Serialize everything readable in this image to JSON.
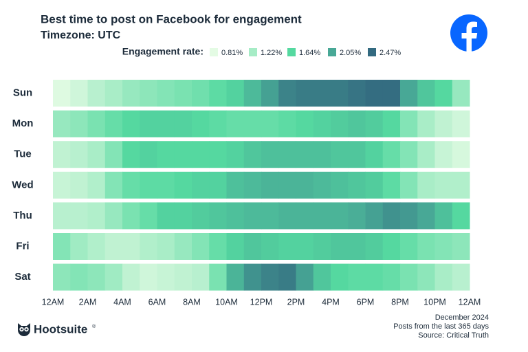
{
  "chart_data": {
    "type": "heatmap",
    "title": "Best time to post on Facebook for engagement",
    "subtitle": "Timezone: UTC",
    "legend_title": "Engagement rate:",
    "colorscale": [
      {
        "value": 0.81,
        "label": "0.81%",
        "color": "#e4fbe4"
      },
      {
        "value": 1.22,
        "label": "1.22%",
        "color": "#a6ecc6"
      },
      {
        "value": 1.64,
        "label": "1.64%",
        "color": "#55d9a0"
      },
      {
        "value": 2.05,
        "label": "2.05%",
        "color": "#48a896"
      },
      {
        "value": 2.47,
        "label": "2.47%",
        "color": "#336a80"
      }
    ],
    "rows": [
      "Sun",
      "Mon",
      "Tue",
      "Wed",
      "Thu",
      "Fri",
      "Sat"
    ],
    "xlim": [
      0,
      24
    ],
    "xticks": [
      {
        "value": 0,
        "label": "12AM"
      },
      {
        "value": 2,
        "label": "2AM"
      },
      {
        "value": 4,
        "label": "4AM"
      },
      {
        "value": 6,
        "label": "6AM"
      },
      {
        "value": 8,
        "label": "8AM"
      },
      {
        "value": 10,
        "label": "10AM"
      },
      {
        "value": 12,
        "label": "12PM"
      },
      {
        "value": 14,
        "label": "2PM"
      },
      {
        "value": 16,
        "label": "4PM"
      },
      {
        "value": 18,
        "label": "6PM"
      },
      {
        "value": 20,
        "label": "8PM"
      },
      {
        "value": 22,
        "label": "10PM"
      },
      {
        "value": 24,
        "label": "12AM"
      }
    ],
    "values": [
      [
        0.85,
        0.95,
        1.1,
        1.2,
        1.3,
        1.35,
        1.4,
        1.45,
        1.5,
        1.6,
        1.7,
        1.9,
        2.1,
        2.3,
        2.35,
        2.35,
        2.35,
        2.4,
        2.45,
        2.45,
        2.05,
        1.8,
        1.65,
        1.3
      ],
      [
        1.3,
        1.35,
        1.45,
        1.55,
        1.65,
        1.7,
        1.7,
        1.7,
        1.65,
        1.6,
        1.55,
        1.55,
        1.55,
        1.6,
        1.65,
        1.7,
        1.75,
        1.8,
        1.75,
        1.65,
        1.4,
        1.2,
        1.05,
        0.95
      ],
      [
        1.05,
        1.1,
        1.2,
        1.4,
        1.65,
        1.7,
        1.65,
        1.65,
        1.65,
        1.65,
        1.7,
        1.8,
        1.85,
        1.85,
        1.85,
        1.85,
        1.8,
        1.8,
        1.7,
        1.55,
        1.4,
        1.2,
        1.0,
        0.9
      ],
      [
        1.0,
        1.05,
        1.15,
        1.4,
        1.55,
        1.6,
        1.6,
        1.65,
        1.7,
        1.7,
        1.85,
        1.9,
        1.95,
        1.95,
        1.95,
        1.9,
        1.85,
        1.8,
        1.75,
        1.6,
        1.4,
        1.2,
        1.15,
        1.15
      ],
      [
        1.1,
        1.1,
        1.15,
        1.3,
        1.45,
        1.55,
        1.7,
        1.7,
        1.75,
        1.8,
        1.85,
        1.9,
        1.9,
        1.95,
        1.95,
        1.95,
        1.95,
        2.0,
        2.1,
        2.2,
        2.15,
        2.05,
        1.85,
        1.65
      ],
      [
        1.4,
        1.25,
        1.15,
        1.05,
        1.05,
        1.15,
        1.2,
        1.3,
        1.4,
        1.55,
        1.7,
        1.8,
        1.75,
        1.7,
        1.7,
        1.75,
        1.8,
        1.8,
        1.75,
        1.65,
        1.55,
        1.45,
        1.4,
        1.35
      ],
      [
        1.35,
        1.4,
        1.35,
        1.25,
        1.05,
        0.95,
        1.0,
        1.05,
        1.1,
        1.45,
        1.95,
        2.2,
        2.3,
        2.35,
        2.1,
        1.8,
        1.65,
        1.6,
        1.6,
        1.55,
        1.45,
        1.35,
        1.2,
        1.1
      ]
    ],
    "brand": "Hootsuite",
    "brand_mark": "®",
    "notes": [
      "December 2024",
      "Posts from the last 365 days",
      "Source: Critical Truth"
    ]
  }
}
